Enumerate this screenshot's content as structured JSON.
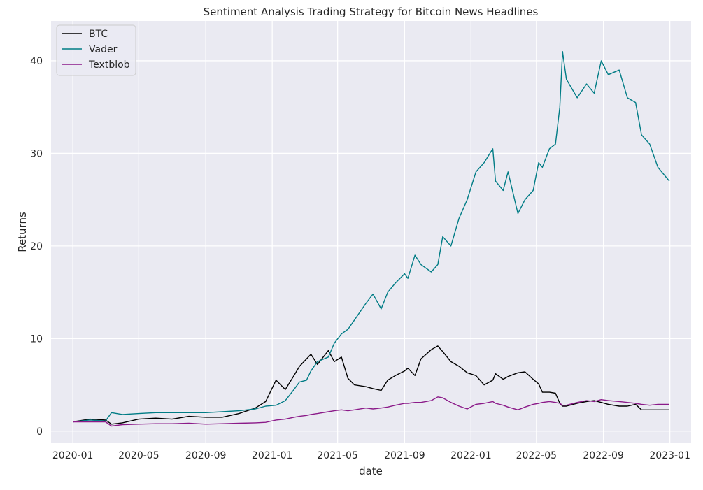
{
  "colors": {
    "plot_bg": "#EAEAF2",
    "grid": "#FFFFFF",
    "text": "#262626",
    "legend_bg": "#EAEAF2",
    "legend_border": "#CCCCCC"
  },
  "chart_data": {
    "type": "line",
    "title": "Sentiment Analysis Trading Strategy for Bitcoin News Headlines",
    "xlabel": "date",
    "ylabel": "Returns",
    "x_range": [
      "2019-11-22",
      "2023-02-09"
    ],
    "ylim": [
      -1.3,
      44.3
    ],
    "x_ticks": [
      "2020-01",
      "2020-05",
      "2020-09",
      "2021-01",
      "2021-05",
      "2021-09",
      "2022-01",
      "2022-05",
      "2022-09",
      "2023-01"
    ],
    "y_ticks": [
      0,
      10,
      20,
      30,
      40
    ],
    "grid": true,
    "legend_position": "top-left",
    "x": [
      "2020-01-01",
      "2020-02-01",
      "2020-03-01",
      "2020-03-12",
      "2020-04-01",
      "2020-05-01",
      "2020-06-01",
      "2020-07-01",
      "2020-08-01",
      "2020-09-01",
      "2020-10-01",
      "2020-11-01",
      "2020-12-01",
      "2020-12-20",
      "2021-01-08",
      "2021-01-25",
      "2021-02-10",
      "2021-02-20",
      "2021-03-05",
      "2021-03-13",
      "2021-03-25",
      "2021-04-14",
      "2021-04-25",
      "2021-05-08",
      "2021-05-20",
      "2021-06-01",
      "2021-06-22",
      "2021-07-05",
      "2021-07-20",
      "2021-08-01",
      "2021-08-15",
      "2021-09-01",
      "2021-09-07",
      "2021-09-20",
      "2021-10-01",
      "2021-10-20",
      "2021-11-01",
      "2021-11-10",
      "2021-11-25",
      "2021-12-10",
      "2021-12-25",
      "2022-01-10",
      "2022-01-25",
      "2022-02-10",
      "2022-02-15",
      "2022-03-01",
      "2022-03-10",
      "2022-03-28",
      "2022-04-10",
      "2022-04-25",
      "2022-05-05",
      "2022-05-12",
      "2022-05-25",
      "2022-06-05",
      "2022-06-13",
      "2022-06-18",
      "2022-06-25",
      "2022-07-15",
      "2022-08-01",
      "2022-08-15",
      "2022-08-28",
      "2022-09-10",
      "2022-09-30",
      "2022-10-15",
      "2022-10-30",
      "2022-11-10",
      "2022-11-25",
      "2022-12-10",
      "2022-12-31"
    ],
    "series": [
      {
        "name": "BTC",
        "color": "#000000",
        "values": [
          1.0,
          1.3,
          1.2,
          0.75,
          0.9,
          1.3,
          1.4,
          1.3,
          1.6,
          1.5,
          1.5,
          1.9,
          2.5,
          3.2,
          5.5,
          4.5,
          6.0,
          7.0,
          7.8,
          8.3,
          7.2,
          8.7,
          7.5,
          8.0,
          5.7,
          5.0,
          4.8,
          4.6,
          4.4,
          5.5,
          6.0,
          6.5,
          6.8,
          6.0,
          7.8,
          8.8,
          9.2,
          8.6,
          7.5,
          7.0,
          6.3,
          6.0,
          5.0,
          5.5,
          6.2,
          5.6,
          5.9,
          6.3,
          6.4,
          5.6,
          5.1,
          4.2,
          4.2,
          4.1,
          3.0,
          2.7,
          2.7,
          3.0,
          3.2,
          3.3,
          3.1,
          2.9,
          2.7,
          2.7,
          2.9,
          2.3,
          2.3,
          2.3,
          2.3
        ]
      },
      {
        "name": "Vader",
        "color": "#007C85",
        "values": [
          1.0,
          1.2,
          1.1,
          2.0,
          1.8,
          1.9,
          2.0,
          2.0,
          2.0,
          2.0,
          2.1,
          2.2,
          2.4,
          2.7,
          2.8,
          3.3,
          4.5,
          5.3,
          5.5,
          6.5,
          7.5,
          8.0,
          9.5,
          10.5,
          11.0,
          12.0,
          13.8,
          14.8,
          13.2,
          15.0,
          16.0,
          17.0,
          16.5,
          19.0,
          18.0,
          17.2,
          18.0,
          21.0,
          20.0,
          23.0,
          25.0,
          28.0,
          29.0,
          30.5,
          27.0,
          26.0,
          28.0,
          23.5,
          25.0,
          26.0,
          29.0,
          28.5,
          30.5,
          31.0,
          35.0,
          41.0,
          38.0,
          36.0,
          37.5,
          36.5,
          40.0,
          38.5,
          39.0,
          36.0,
          35.5,
          32.0,
          31.0,
          28.5,
          27.0
        ]
      },
      {
        "name": "Textblob",
        "color": "#8B1A89",
        "values": [
          1.0,
          1.0,
          1.0,
          0.55,
          0.7,
          0.75,
          0.8,
          0.8,
          0.85,
          0.75,
          0.8,
          0.85,
          0.9,
          0.95,
          1.2,
          1.3,
          1.5,
          1.6,
          1.7,
          1.8,
          1.9,
          2.1,
          2.2,
          2.3,
          2.2,
          2.3,
          2.5,
          2.4,
          2.5,
          2.6,
          2.8,
          3.0,
          3.0,
          3.1,
          3.1,
          3.3,
          3.7,
          3.6,
          3.1,
          2.7,
          2.4,
          2.9,
          3.0,
          3.2,
          3.0,
          2.8,
          2.6,
          2.3,
          2.6,
          2.9,
          3.0,
          3.1,
          3.2,
          3.1,
          3.0,
          2.8,
          2.8,
          3.1,
          3.3,
          3.2,
          3.4,
          3.3,
          3.2,
          3.1,
          3.0,
          2.9,
          2.8,
          2.9,
          2.9
        ]
      }
    ]
  }
}
